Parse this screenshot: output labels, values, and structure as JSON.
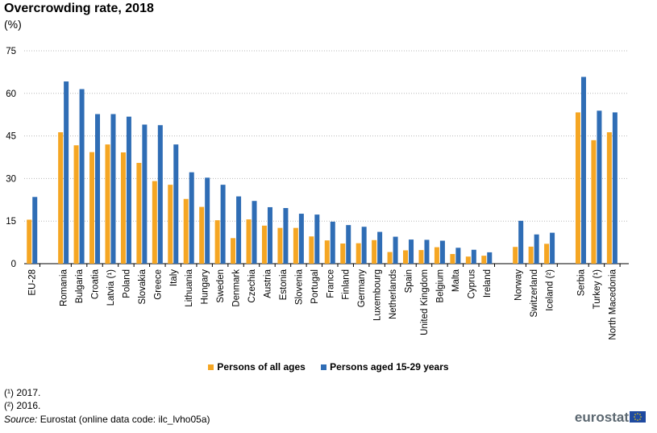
{
  "header": {
    "title": "Overcrowding rate, 2018",
    "subtitle": "(%)"
  },
  "legend": {
    "items": [
      {
        "label": "Persons of all ages",
        "color": "#F5A623"
      },
      {
        "label": "Persons aged 15-29 years",
        "color": "#2F6DB5"
      }
    ]
  },
  "footnotes": {
    "note1": "(¹) 2017.",
    "note2": "(²) 2016.",
    "source_label": "Source:",
    "source_text": " Eurostat (online data code: ilc_lvho05a)"
  },
  "logo": {
    "text": "eurostat",
    "flag_icon": "eu-flag-icon"
  },
  "chart_data": {
    "type": "bar",
    "title": "Overcrowding rate, 2018",
    "ylabel": "(%)",
    "ylim": [
      0,
      75
    ],
    "yticks": [
      0,
      15,
      30,
      45,
      60,
      75
    ],
    "grid": true,
    "legend_position": "bottom",
    "groups": [
      {
        "categories": [
          "EU-28"
        ]
      },
      {
        "categories": [
          "Romania",
          "Bulgaria",
          "Croatia",
          "Latvia (¹)",
          "Poland",
          "Slovakia",
          "Greece",
          "Italy",
          "Lithuania",
          "Hungary",
          "Sweden",
          "Denmark",
          "Czechia",
          "Austria",
          "Estonia",
          "Slovenia",
          "Portugal",
          "France",
          "Finland",
          "Germany",
          "Luxembourg",
          "Netherlands",
          "Spain",
          "United Kingdom",
          "Belgium",
          "Malta",
          "Cyprus",
          "Ireland"
        ]
      },
      {
        "categories": [
          "Norway",
          "Switzerland",
          "Iceland (²)"
        ]
      },
      {
        "categories": [
          "Serbia",
          "Turkey (¹)",
          "North Macedonia"
        ]
      }
    ],
    "series": [
      {
        "name": "Persons of all ages",
        "color": "#F5A623",
        "values": [
          15.5,
          46.3,
          41.7,
          39.3,
          42.0,
          39.2,
          35.5,
          29.1,
          27.8,
          22.8,
          20.0,
          15.3,
          9.0,
          15.6,
          13.4,
          12.6,
          12.6,
          9.6,
          8.2,
          7.1,
          7.2,
          8.3,
          4.1,
          4.7,
          4.8,
          5.8,
          3.4,
          2.5,
          2.8,
          5.9,
          6.0,
          7.0,
          53.3,
          43.5,
          46.3
        ]
      },
      {
        "name": "Persons aged 15-29 years",
        "color": "#2F6DB5",
        "values": [
          23.5,
          64.2,
          61.5,
          52.7,
          52.7,
          51.8,
          49.0,
          48.8,
          42.0,
          32.2,
          30.3,
          27.8,
          23.7,
          22.1,
          19.9,
          19.6,
          17.6,
          17.3,
          14.8,
          13.6,
          13.0,
          11.2,
          9.5,
          8.5,
          8.4,
          8.1,
          5.6,
          4.9,
          4.0,
          15.1,
          10.3,
          10.9,
          65.8,
          53.9,
          53.3
        ]
      }
    ]
  }
}
